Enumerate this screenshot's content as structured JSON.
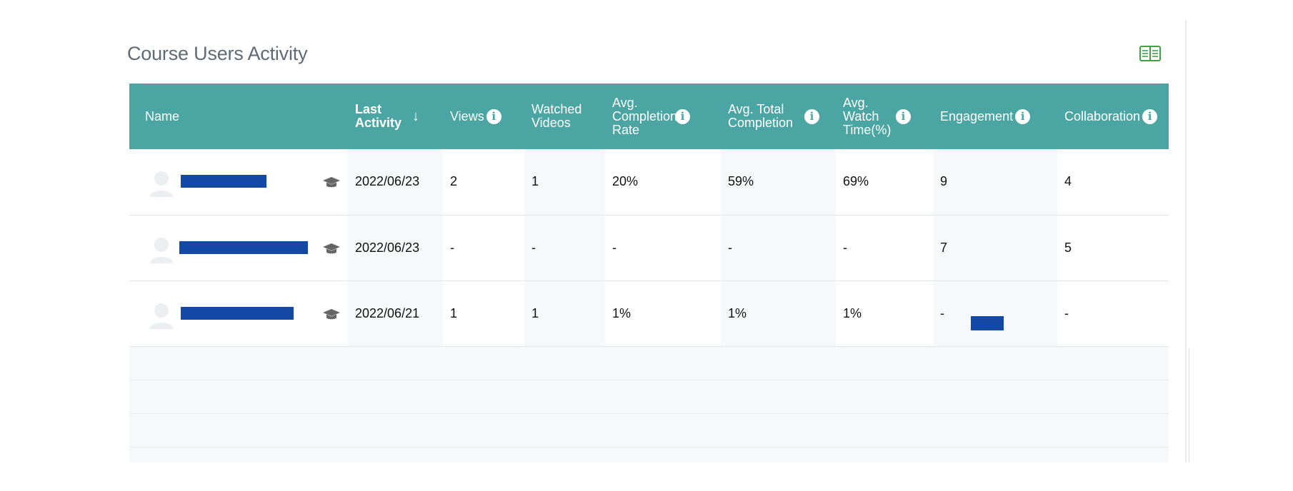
{
  "title": "Course Users Activity",
  "icons": {
    "book": "book-open-icon",
    "avatar": "user-avatar-icon",
    "role": "graduation-cap-icon",
    "info": "info-icon",
    "sort": "arrow-down-icon"
  },
  "colors": {
    "header_bg": "#4ba6a3",
    "redaction": "#1448a6",
    "book_icon": "#43a047"
  },
  "table": {
    "columns": {
      "name": "Name",
      "last_activity": "Last Activity",
      "views": "Views",
      "watched_videos": "Watched Videos",
      "avg_completion_rate": "Avg. Completion Rate",
      "avg_total_completion": "Avg. Total Completion",
      "avg_watch_time": "Avg. Watch Time(%)",
      "engagement": "Engagement",
      "collaboration": "Collaboration"
    },
    "info_symbol": "i",
    "sort_symbol": "↓",
    "rows": [
      {
        "last_activity": "2022/06/23",
        "views": "2",
        "watched_videos": "1",
        "avg_completion_rate": "20%",
        "avg_total_completion": "59%",
        "avg_watch_time": "69%",
        "engagement": "9",
        "collaboration": "4"
      },
      {
        "last_activity": "2022/06/23",
        "views": "-",
        "watched_videos": "-",
        "avg_completion_rate": "-",
        "avg_total_completion": "-",
        "avg_watch_time": "-",
        "engagement": "7",
        "collaboration": "5"
      },
      {
        "last_activity": "2022/06/21",
        "views": "1",
        "watched_videos": "1",
        "avg_completion_rate": "1%",
        "avg_total_completion": "1%",
        "avg_watch_time": "1%",
        "engagement": "-",
        "collaboration": "-"
      }
    ]
  }
}
